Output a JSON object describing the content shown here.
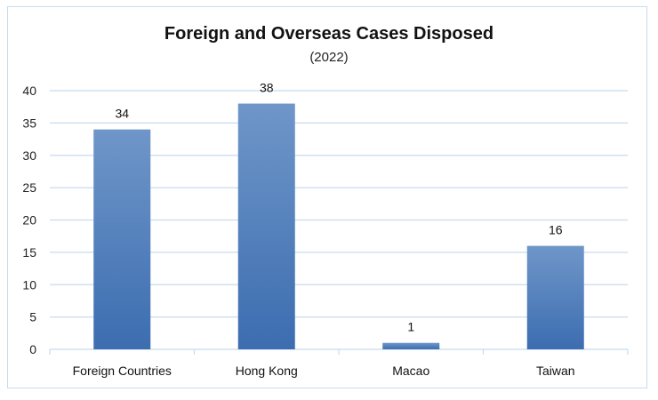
{
  "chart_data": {
    "type": "bar",
    "title": "Foreign and Overseas Cases Disposed",
    "subtitle": "(2022)",
    "categories": [
      "Foreign Countries",
      "Hong Kong",
      "Macao",
      "Taiwan"
    ],
    "values": [
      34,
      38,
      1,
      16
    ],
    "ylim": [
      0,
      40
    ],
    "yticks": [
      0,
      5,
      10,
      15,
      20,
      25,
      30,
      35,
      40
    ],
    "xlabel": "",
    "ylabel": "",
    "grid": true,
    "legend": "none",
    "bar_color_top": "#6f96c9",
    "bar_color_bottom": "#3c6db0",
    "grid_color": "#c7dcef"
  }
}
